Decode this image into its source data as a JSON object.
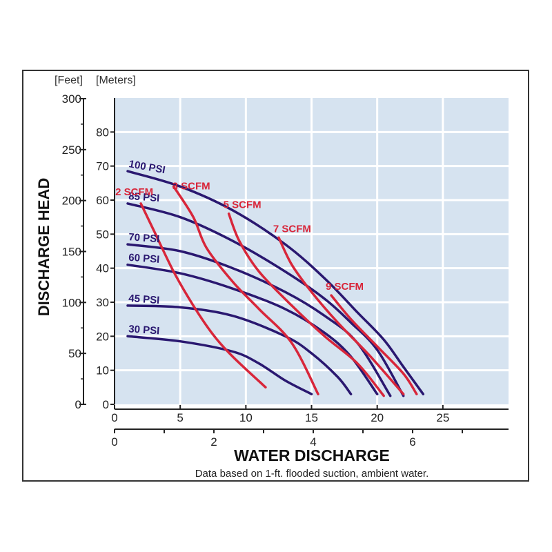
{
  "chart_data": {
    "type": "line",
    "y_units": {
      "left": "[Feet]",
      "right": "[Meters]"
    },
    "ylabel": "DISCHARGE HEAD",
    "xlabel": "WATER DISCHARGE",
    "note": "Data based on 1-ft. flooded suction, ambient water.",
    "y_feet_ticks": [
      "0",
      "50",
      "100",
      "150",
      "200",
      "250",
      "300"
    ],
    "y_meters_ticks": [
      "0",
      "10",
      "20",
      "30",
      "40",
      "50",
      "60",
      "70",
      "80"
    ],
    "x_top_ticks": [
      "0",
      "5",
      "10",
      "15",
      "20",
      "25"
    ],
    "x_bottom_ticks": [
      "0",
      "2",
      "4",
      "6"
    ],
    "xlim": [
      0,
      30
    ],
    "ylim_meters": [
      0,
      90
    ],
    "colors": {
      "psi": "#2a1870",
      "scfm": "#d8263a",
      "plot_bg": "#d6e3f0",
      "grid": "#ffffff"
    },
    "psi_series": [
      {
        "name": "100 PSI",
        "points": [
          [
            1,
            68.5
          ],
          [
            5,
            64
          ],
          [
            9,
            57
          ],
          [
            13,
            47
          ],
          [
            16,
            37
          ],
          [
            18.5,
            27
          ],
          [
            20.5,
            19
          ],
          [
            22,
            11
          ],
          [
            23.5,
            3
          ]
        ]
      },
      {
        "name": "85 PSI",
        "points": [
          [
            1,
            59
          ],
          [
            5,
            55
          ],
          [
            9,
            48
          ],
          [
            13,
            39
          ],
          [
            16,
            31
          ],
          [
            18,
            24
          ],
          [
            20,
            16
          ],
          [
            22,
            2.5
          ]
        ]
      },
      {
        "name": "70 PSI",
        "points": [
          [
            1,
            47
          ],
          [
            5,
            45
          ],
          [
            9,
            40
          ],
          [
            13,
            33
          ],
          [
            16,
            26
          ],
          [
            18.5,
            18
          ],
          [
            21,
            2.5
          ]
        ]
      },
      {
        "name": "60 PSI",
        "points": [
          [
            1,
            41
          ],
          [
            5,
            38.5
          ],
          [
            9,
            34
          ],
          [
            13,
            28
          ],
          [
            16,
            21
          ],
          [
            18,
            14
          ],
          [
            20,
            3
          ]
        ]
      },
      {
        "name": "45 PSI",
        "points": [
          [
            1,
            29
          ],
          [
            5,
            28.5
          ],
          [
            9,
            26
          ],
          [
            13,
            20
          ],
          [
            15,
            15
          ],
          [
            17,
            8
          ],
          [
            18,
            3
          ]
        ]
      },
      {
        "name": "30 PSI",
        "points": [
          [
            1,
            20
          ],
          [
            5,
            18.5
          ],
          [
            9,
            15.5
          ],
          [
            11,
            12
          ],
          [
            13,
            7
          ],
          [
            15,
            3
          ]
        ]
      }
    ],
    "scfm_series": [
      {
        "name": "2 SCFM",
        "points": [
          [
            2,
            59
          ],
          [
            3,
            51
          ],
          [
            4.5,
            39
          ],
          [
            6,
            29
          ],
          [
            7.5,
            20.5
          ],
          [
            9,
            14
          ],
          [
            11.5,
            5
          ]
        ]
      },
      {
        "name": "3 SCFM",
        "points": [
          [
            4.5,
            64
          ],
          [
            6,
            55
          ],
          [
            7,
            46
          ],
          [
            9,
            36
          ],
          [
            11,
            28
          ],
          [
            13.5,
            18
          ],
          [
            15.5,
            3
          ]
        ]
      },
      {
        "name": "5 SCFM",
        "points": [
          [
            8.7,
            56
          ],
          [
            9.5,
            48
          ],
          [
            11,
            39
          ],
          [
            13.5,
            29
          ],
          [
            16,
            20
          ],
          [
            18.5,
            12
          ],
          [
            20.5,
            2.5
          ]
        ]
      },
      {
        "name": "7 SCFM",
        "points": [
          [
            12.5,
            49
          ],
          [
            13.5,
            41
          ],
          [
            15,
            33
          ],
          [
            17,
            24
          ],
          [
            19.5,
            14
          ],
          [
            22,
            3
          ]
        ]
      },
      {
        "name": "9 SCFM",
        "points": [
          [
            16.5,
            32
          ],
          [
            18,
            25
          ],
          [
            20,
            17
          ],
          [
            22,
            9
          ],
          [
            23,
            3
          ]
        ]
      }
    ]
  }
}
